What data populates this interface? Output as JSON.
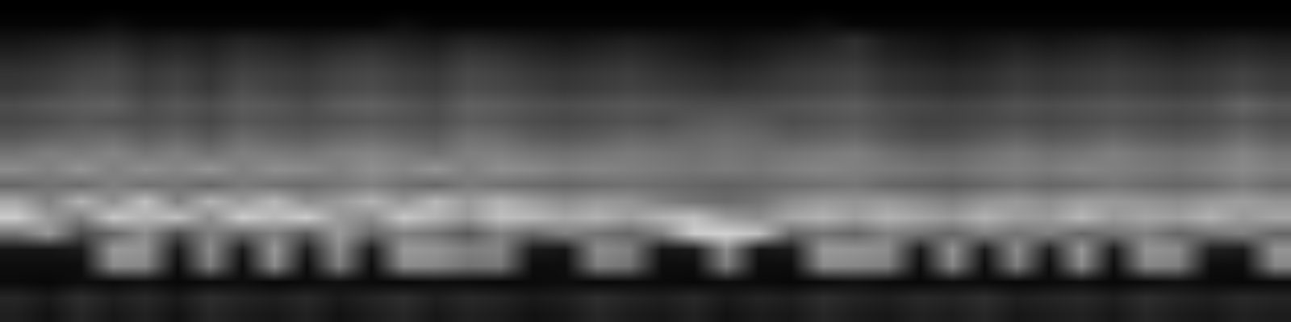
{
  "chart_data": {
    "type": "heatmap",
    "tick_labels": false,
    "zlim": [
      0,
      1
    ],
    "cells": [
      [
        0,
        0,
        0,
        0,
        0,
        0,
        0,
        0,
        0,
        0,
        0,
        0,
        0,
        0,
        0,
        0,
        0,
        0,
        0,
        0,
        0,
        0,
        0,
        0,
        0,
        0,
        0,
        0,
        0,
        0,
        0,
        0,
        0,
        0,
        0,
        0,
        0,
        0,
        0,
        0
      ],
      [
        0.02,
        0.02,
        0.02,
        0.05,
        0.02,
        0.02,
        0.02,
        0.02,
        0.02,
        0.02,
        0.02,
        0.02,
        0.05,
        0.02,
        0.02,
        0.02,
        0.02,
        0.02,
        0.02,
        0.02,
        0.02,
        0.02,
        0.02,
        0.02,
        0.02,
        0.05,
        0.02,
        0.02,
        0.02,
        0.02,
        0.02,
        0.02,
        0.02,
        0.02,
        0.02,
        0.02,
        0.02,
        0.02,
        0.02,
        0.02
      ],
      [
        0.08,
        0.1,
        0.12,
        0.14,
        0.1,
        0.12,
        0.1,
        0.14,
        0.12,
        0.1,
        0.12,
        0.14,
        0.12,
        0.1,
        0.14,
        0.12,
        0.1,
        0.08,
        0.1,
        0.12,
        0.1,
        0.08,
        0.06,
        0.08,
        0.1,
        0.12,
        0.18,
        0.1,
        0.08,
        0.06,
        0.08,
        0.1,
        0.08,
        0.1,
        0.12,
        0.1,
        0.08,
        0.1,
        0.12,
        0.1
      ],
      [
        0.14,
        0.16,
        0.2,
        0.22,
        0.16,
        0.18,
        0.15,
        0.2,
        0.18,
        0.16,
        0.2,
        0.22,
        0.18,
        0.16,
        0.22,
        0.2,
        0.16,
        0.14,
        0.16,
        0.18,
        0.15,
        0.12,
        0.1,
        0.12,
        0.16,
        0.18,
        0.2,
        0.14,
        0.12,
        0.1,
        0.12,
        0.16,
        0.14,
        0.16,
        0.18,
        0.16,
        0.14,
        0.16,
        0.18,
        0.16
      ],
      [
        0.2,
        0.22,
        0.26,
        0.28,
        0.22,
        0.25,
        0.2,
        0.26,
        0.24,
        0.22,
        0.26,
        0.28,
        0.24,
        0.22,
        0.28,
        0.26,
        0.22,
        0.2,
        0.22,
        0.24,
        0.2,
        0.18,
        0.16,
        0.18,
        0.22,
        0.24,
        0.26,
        0.2,
        0.18,
        0.16,
        0.18,
        0.22,
        0.2,
        0.22,
        0.24,
        0.22,
        0.2,
        0.22,
        0.26,
        0.22
      ],
      [
        0.22,
        0.25,
        0.3,
        0.3,
        0.24,
        0.27,
        0.22,
        0.3,
        0.26,
        0.24,
        0.28,
        0.3,
        0.26,
        0.24,
        0.3,
        0.28,
        0.25,
        0.22,
        0.24,
        0.26,
        0.24,
        0.22,
        0.2,
        0.22,
        0.24,
        0.26,
        0.28,
        0.22,
        0.2,
        0.18,
        0.2,
        0.24,
        0.22,
        0.24,
        0.26,
        0.24,
        0.22,
        0.24,
        0.28,
        0.24
      ],
      [
        0.3,
        0.34,
        0.36,
        0.38,
        0.3,
        0.34,
        0.3,
        0.36,
        0.34,
        0.3,
        0.36,
        0.38,
        0.34,
        0.3,
        0.38,
        0.36,
        0.32,
        0.3,
        0.32,
        0.34,
        0.32,
        0.3,
        0.3,
        0.3,
        0.32,
        0.34,
        0.36,
        0.3,
        0.28,
        0.26,
        0.28,
        0.32,
        0.3,
        0.32,
        0.34,
        0.32,
        0.3,
        0.32,
        0.4,
        0.34
      ],
      [
        0.28,
        0.3,
        0.34,
        0.32,
        0.3,
        0.32,
        0.28,
        0.34,
        0.32,
        0.3,
        0.32,
        0.34,
        0.32,
        0.3,
        0.36,
        0.34,
        0.3,
        0.28,
        0.3,
        0.32,
        0.3,
        0.34,
        0.36,
        0.34,
        0.3,
        0.32,
        0.34,
        0.3,
        0.26,
        0.26,
        0.28,
        0.3,
        0.28,
        0.3,
        0.32,
        0.3,
        0.28,
        0.3,
        0.34,
        0.3
      ],
      [
        0.34,
        0.38,
        0.4,
        0.42,
        0.36,
        0.4,
        0.34,
        0.42,
        0.38,
        0.36,
        0.4,
        0.42,
        0.38,
        0.36,
        0.44,
        0.42,
        0.36,
        0.34,
        0.36,
        0.4,
        0.38,
        0.4,
        0.42,
        0.4,
        0.36,
        0.38,
        0.4,
        0.34,
        0.3,
        0.3,
        0.34,
        0.38,
        0.34,
        0.36,
        0.4,
        0.36,
        0.34,
        0.36,
        0.42,
        0.36
      ],
      [
        0.45,
        0.5,
        0.48,
        0.52,
        0.46,
        0.5,
        0.44,
        0.5,
        0.48,
        0.46,
        0.5,
        0.52,
        0.48,
        0.44,
        0.5,
        0.5,
        0.46,
        0.44,
        0.46,
        0.48,
        0.46,
        0.44,
        0.46,
        0.44,
        0.46,
        0.48,
        0.5,
        0.44,
        0.4,
        0.4,
        0.44,
        0.48,
        0.44,
        0.46,
        0.5,
        0.46,
        0.44,
        0.46,
        0.52,
        0.46
      ],
      [
        0.55,
        0.5,
        0.58,
        0.5,
        0.56,
        0.52,
        0.58,
        0.5,
        0.56,
        0.54,
        0.5,
        0.56,
        0.52,
        0.58,
        0.5,
        0.56,
        0.54,
        0.5,
        0.52,
        0.5,
        0.48,
        0.46,
        0.48,
        0.46,
        0.5,
        0.52,
        0.5,
        0.48,
        0.46,
        0.44,
        0.48,
        0.5,
        0.48,
        0.52,
        0.5,
        0.48,
        0.46,
        0.5,
        0.54,
        0.5
      ],
      [
        0.4,
        0.45,
        0.42,
        0.5,
        0.44,
        0.46,
        0.4,
        0.48,
        0.44,
        0.42,
        0.46,
        0.5,
        0.44,
        0.4,
        0.48,
        0.44,
        0.42,
        0.4,
        0.42,
        0.44,
        0.42,
        0.4,
        0.38,
        0.4,
        0.42,
        0.44,
        0.46,
        0.4,
        0.38,
        0.36,
        0.4,
        0.44,
        0.4,
        0.42,
        0.46,
        0.42,
        0.4,
        0.42,
        0.48,
        0.42
      ],
      [
        0.65,
        0.5,
        0.7,
        0.55,
        0.75,
        0.5,
        0.7,
        0.6,
        0.72,
        0.55,
        0.6,
        0.7,
        0.58,
        0.72,
        0.6,
        0.7,
        0.62,
        0.55,
        0.6,
        0.58,
        0.5,
        0.45,
        0.42,
        0.45,
        0.55,
        0.6,
        0.58,
        0.6,
        0.55,
        0.5,
        0.58,
        0.6,
        0.55,
        0.62,
        0.6,
        0.58,
        0.55,
        0.6,
        0.62,
        0.58
      ],
      [
        0.8,
        0.6,
        0.5,
        0.78,
        0.7,
        0.75,
        0.55,
        0.8,
        0.72,
        0.8,
        0.6,
        0.55,
        0.78,
        0.7,
        0.6,
        0.75,
        0.72,
        0.65,
        0.7,
        0.62,
        0.7,
        0.75,
        0.6,
        0.55,
        0.65,
        0.7,
        0.62,
        0.7,
        0.65,
        0.6,
        0.7,
        0.62,
        0.6,
        0.72,
        0.6,
        0.65,
        0.62,
        0.7,
        0.6,
        0.65
      ],
      [
        0.45,
        0.6,
        0.3,
        0.4,
        0.55,
        0.3,
        0.5,
        0.4,
        0.5,
        0.35,
        0.6,
        0.4,
        0.5,
        0.45,
        0.35,
        0.5,
        0.4,
        0.5,
        0.45,
        0.4,
        0.5,
        0.8,
        0.82,
        0.75,
        0.4,
        0.45,
        0.4,
        0.5,
        0.45,
        0.4,
        0.5,
        0.45,
        0.5,
        0.4,
        0.45,
        0.5,
        0.4,
        0.45,
        0.5,
        0.4
      ],
      [
        0.08,
        0.08,
        0.1,
        0.6,
        0.58,
        0.1,
        0.55,
        0.1,
        0.6,
        0.12,
        0.55,
        0.1,
        0.6,
        0.58,
        0.5,
        0.52,
        0.1,
        0.08,
        0.55,
        0.5,
        0.08,
        0.1,
        0.55,
        0.08,
        0.1,
        0.6,
        0.58,
        0.55,
        0.1,
        0.58,
        0.1,
        0.55,
        0.12,
        0.6,
        0.1,
        0.58,
        0.55,
        0.12,
        0.1,
        0.58
      ],
      [
        0.05,
        0.05,
        0.05,
        0.55,
        0.53,
        0.05,
        0.5,
        0.05,
        0.55,
        0.05,
        0.5,
        0.05,
        0.55,
        0.53,
        0.45,
        0.47,
        0.05,
        0.05,
        0.5,
        0.45,
        0.05,
        0.05,
        0.5,
        0.05,
        0.05,
        0.55,
        0.53,
        0.5,
        0.05,
        0.53,
        0.05,
        0.5,
        0.05,
        0.55,
        0.05,
        0.53,
        0.5,
        0.05,
        0.05,
        0.53
      ],
      [
        0.04,
        0.03,
        0.05,
        0.04,
        0.06,
        0.03,
        0.04,
        0.05,
        0.03,
        0.04,
        0.06,
        0.04,
        0.03,
        0.05,
        0.04,
        0.03,
        0.04,
        0.05,
        0.03,
        0.04,
        0.04,
        0.03,
        0.05,
        0.04,
        0.03,
        0.04,
        0.06,
        0.04,
        0.03,
        0.05,
        0.04,
        0.03,
        0.04,
        0.05,
        0.03,
        0.04,
        0.06,
        0.04,
        0.03,
        0.04
      ],
      [
        0.15,
        0.1,
        0.18,
        0.12,
        0.16,
        0.1,
        0.18,
        0.14,
        0.12,
        0.16,
        0.1,
        0.14,
        0.18,
        0.12,
        0.16,
        0.14,
        0.1,
        0.12,
        0.18,
        0.14,
        0.12,
        0.16,
        0.1,
        0.14,
        0.12,
        0.18,
        0.14,
        0.12,
        0.16,
        0.14,
        0.18,
        0.12,
        0.14,
        0.16,
        0.12,
        0.18,
        0.14,
        0.12,
        0.16,
        0.14
      ],
      [
        0.12,
        0.07,
        0.15,
        0.09,
        0.13,
        0.07,
        0.15,
        0.11,
        0.09,
        0.13,
        0.07,
        0.11,
        0.15,
        0.09,
        0.13,
        0.11,
        0.07,
        0.09,
        0.15,
        0.11,
        0.09,
        0.13,
        0.07,
        0.11,
        0.09,
        0.15,
        0.11,
        0.09,
        0.13,
        0.11,
        0.15,
        0.09,
        0.11,
        0.13,
        0.09,
        0.15,
        0.11,
        0.09,
        0.13,
        0.11
      ]
    ]
  }
}
